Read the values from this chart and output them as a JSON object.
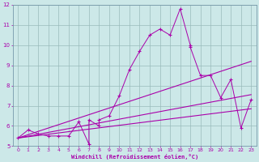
{
  "xlabel": "Windchill (Refroidissement éolien,°C)",
  "background_color": "#cce8e8",
  "line_color": "#aa00aa",
  "grid_color": "#99bbbb",
  "spine_color": "#7799aa",
  "xlim": [
    -0.5,
    23.5
  ],
  "ylim": [
    5,
    12
  ],
  "xticks": [
    0,
    1,
    2,
    3,
    4,
    5,
    6,
    7,
    8,
    9,
    10,
    11,
    12,
    13,
    14,
    15,
    16,
    17,
    18,
    19,
    20,
    21,
    22,
    23
  ],
  "yticks": [
    5,
    6,
    7,
    8,
    9,
    10,
    11,
    12
  ],
  "scatter_x": [
    0,
    1,
    2,
    3,
    4,
    5,
    6,
    7,
    7,
    8,
    8,
    9,
    10,
    11,
    12,
    13,
    14,
    15,
    16,
    17,
    17,
    18,
    19,
    20,
    21,
    22,
    23
  ],
  "scatter_y": [
    5.4,
    5.8,
    5.6,
    5.5,
    5.5,
    5.5,
    6.2,
    5.1,
    6.3,
    6.0,
    6.3,
    6.5,
    7.5,
    8.8,
    9.7,
    10.5,
    10.8,
    10.5,
    11.8,
    10.0,
    9.9,
    8.5,
    8.5,
    7.4,
    8.3,
    5.9,
    7.3
  ],
  "line1_x": [
    0,
    23
  ],
  "line1_y": [
    5.4,
    7.55
  ],
  "line2_x": [
    0,
    23
  ],
  "line2_y": [
    5.4,
    9.2
  ],
  "line3_x": [
    0,
    23
  ],
  "line3_y": [
    5.4,
    6.85
  ]
}
